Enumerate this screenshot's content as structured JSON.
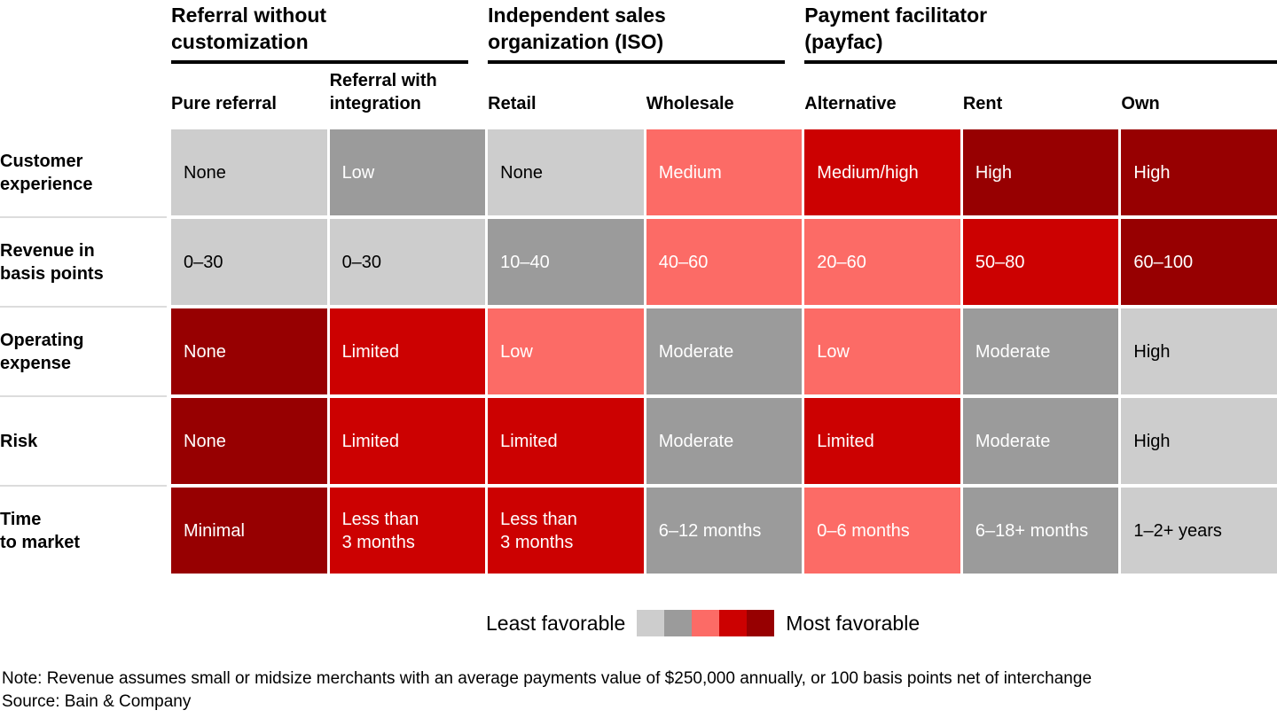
{
  "chart_data": {
    "type": "heatmap",
    "groups": [
      {
        "label": "Referral without\ncustomization",
        "span": 2
      },
      {
        "label": "Independent sales\norganization (ISO)",
        "span": 2
      },
      {
        "label": "Payment facilitator\n(payfac)",
        "span": 3
      }
    ],
    "columns": [
      "Pure referral",
      "Referral with\nintegration",
      "Retail",
      "Wholesale",
      "Alternative",
      "Rent",
      "Own"
    ],
    "rows": [
      {
        "label": "Customer\nexperience",
        "cells": [
          {
            "text": "None",
            "favorability": 1
          },
          {
            "text": "Low",
            "favorability": 2
          },
          {
            "text": "None",
            "favorability": 1
          },
          {
            "text": "Medium",
            "favorability": 3
          },
          {
            "text": "Medium/high",
            "favorability": 4
          },
          {
            "text": "High",
            "favorability": 5
          },
          {
            "text": "High",
            "favorability": 5
          }
        ]
      },
      {
        "label": "Revenue in\nbasis points",
        "cells": [
          {
            "text": "0–30",
            "favorability": 1
          },
          {
            "text": "0–30",
            "favorability": 1
          },
          {
            "text": "10–40",
            "favorability": 2
          },
          {
            "text": "40–60",
            "favorability": 3
          },
          {
            "text": "20–60",
            "favorability": 3
          },
          {
            "text": "50–80",
            "favorability": 4
          },
          {
            "text": "60–100",
            "favorability": 5
          }
        ]
      },
      {
        "label": "Operating\nexpense",
        "cells": [
          {
            "text": "None",
            "favorability": 5
          },
          {
            "text": "Limited",
            "favorability": 4
          },
          {
            "text": "Low",
            "favorability": 3
          },
          {
            "text": "Moderate",
            "favorability": 2
          },
          {
            "text": "Low",
            "favorability": 3
          },
          {
            "text": "Moderate",
            "favorability": 2
          },
          {
            "text": "High",
            "favorability": 1
          }
        ]
      },
      {
        "label": "Risk",
        "cells": [
          {
            "text": "None",
            "favorability": 5
          },
          {
            "text": "Limited",
            "favorability": 4
          },
          {
            "text": "Limited",
            "favorability": 4
          },
          {
            "text": "Moderate",
            "favorability": 2
          },
          {
            "text": "Limited",
            "favorability": 4
          },
          {
            "text": "Moderate",
            "favorability": 2
          },
          {
            "text": "High",
            "favorability": 1
          }
        ]
      },
      {
        "label": "Time\nto market",
        "cells": [
          {
            "text": "Minimal",
            "favorability": 5
          },
          {
            "text": "Less than\n3 months",
            "favorability": 4
          },
          {
            "text": "Less than\n3 months",
            "favorability": 4
          },
          {
            "text": "6–12 months",
            "favorability": 2
          },
          {
            "text": "0–6 months",
            "favorability": 3
          },
          {
            "text": "6–18+ months",
            "favorability": 2
          },
          {
            "text": "1–2+ years",
            "favorability": 1
          }
        ]
      }
    ],
    "scale": {
      "least_label": "Least favorable",
      "most_label": "Most favorable",
      "levels": [
        1,
        2,
        3,
        4,
        5
      ],
      "colors": [
        "#cdcdcd",
        "#9b9b9b",
        "#fc6b66",
        "#cc0101",
        "#970001"
      ],
      "text_colors": [
        "#000000",
        "#ffffff",
        "#ffffff",
        "#ffffff",
        "#ffffff"
      ]
    }
  },
  "footer": {
    "note": "Note: Revenue assumes small or midsize merchants with an average payments value of $250,000 annually, or 100 basis points net of interchange",
    "source": "Source: Bain & Company"
  }
}
